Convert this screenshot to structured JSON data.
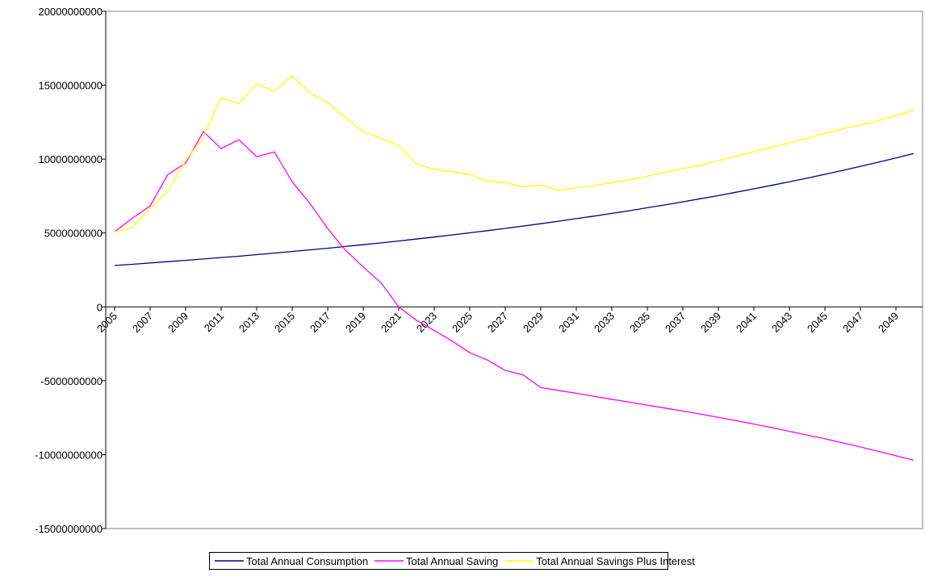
{
  "chart_data": {
    "type": "line",
    "categories": [
      "2005",
      null,
      "2007",
      null,
      "2009",
      null,
      "2011",
      null,
      "2013",
      null,
      "2015",
      null,
      "2017",
      null,
      "2019",
      null,
      "2021",
      null,
      "2023",
      null,
      "2025",
      null,
      "2027",
      null,
      "2029",
      null,
      "2031",
      null,
      "2033",
      null,
      "2035",
      null,
      "2037",
      null,
      "2039",
      null,
      "2041",
      null,
      "2043",
      null,
      "2045",
      null,
      "2047",
      null,
      "2049",
      null
    ],
    "series": [
      {
        "name": "Total Annual Consumption",
        "color": "#000080",
        "values": [
          2800000000.0,
          2880000000.0,
          2970000000.0,
          3060000000.0,
          3150000000.0,
          3240000000.0,
          3340000000.0,
          3430000000.0,
          3540000000.0,
          3640000000.0,
          3750000000.0,
          3860000000.0,
          3970000000.0,
          4090000000.0,
          4210000000.0,
          4330000000.0,
          4460000000.0,
          4590000000.0,
          4730000000.0,
          4870000000.0,
          5010000000.0,
          5160000000.0,
          5310000000.0,
          5470000000.0,
          5630000000.0,
          5800000000.0,
          5970000000.0,
          6140000000.0,
          6330000000.0,
          6510000000.0,
          6710000000.0,
          6900000000.0,
          7110000000.0,
          7320000000.0,
          7530000000.0,
          7760000000.0,
          7990000000.0,
          8220000000.0,
          8460000000.0,
          8710000000.0,
          8970000000.0,
          9240000000.0,
          9510000000.0,
          9790000000.0,
          10080000000.0,
          10380000000.0
        ]
      },
      {
        "name": "Total Annual Saving",
        "color": "#ff00ff",
        "values": [
          5080000000.0,
          6000000000.0,
          6830000000.0,
          8960000000.0,
          9730000000.0,
          11860000000.0,
          10710000000.0,
          11310000000.0,
          10160000000.0,
          10490000000.0,
          8470000000.0,
          7000000000.0,
          5300000000.0,
          3830000000.0,
          2700000000.0,
          1640000000.0,
          0,
          -900000000.0,
          -1600000000.0,
          -2300000000.0,
          -3100000000.0,
          -3600000000.0,
          -4300000000.0,
          -4600000000.0,
          -5460000000.0,
          -5650000000.0,
          -5850000000.0,
          -6050000000.0,
          -6250000000.0,
          -6450000000.0,
          -6650000000.0,
          -6850000000.0,
          -7050000000.0,
          -7250000000.0,
          -7470000000.0,
          -7700000000.0,
          -7930000000.0,
          -8170000000.0,
          -8420000000.0,
          -8670000000.0,
          -8930000000.0,
          -9200000000.0,
          -9480000000.0,
          -9770000000.0,
          -10070000000.0,
          -10380000000.0
        ]
      },
      {
        "name": "Total Annual Savings Plus Interest",
        "color": "#ffff00",
        "values": [
          5080000000.0,
          5360000000.0,
          6700000000.0,
          7800000000.0,
          9900000000.0,
          11500000000.0,
          14150000000.0,
          13770000000.0,
          15080000000.0,
          14590000000.0,
          15630000000.0,
          14480000000.0,
          13830000000.0,
          12800000000.0,
          11860000000.0,
          11400000000.0,
          10930000000.0,
          9670000000.0,
          9300000000.0,
          9150000000.0,
          8960000000.0,
          8520000000.0,
          8400000000.0,
          8140000000.0,
          8240000000.0,
          7870000000.0,
          8050000000.0,
          8200000000.0,
          8400000000.0,
          8600000000.0,
          8850000000.0,
          9100000000.0,
          9350000000.0,
          9600000000.0,
          9900000000.0,
          10200000000.0,
          10500000000.0,
          10800000000.0,
          11100000000.0,
          11400000000.0,
          11750000000.0,
          12050000000.0,
          12300000000.0,
          12600000000.0,
          12950000000.0,
          13300000000.0
        ]
      }
    ],
    "ylim": [
      -15000000000,
      20000000000
    ],
    "yticks": [
      -15000000000,
      -10000000000,
      -5000000000,
      0,
      5000000000,
      10000000000,
      15000000000,
      20000000000
    ]
  }
}
